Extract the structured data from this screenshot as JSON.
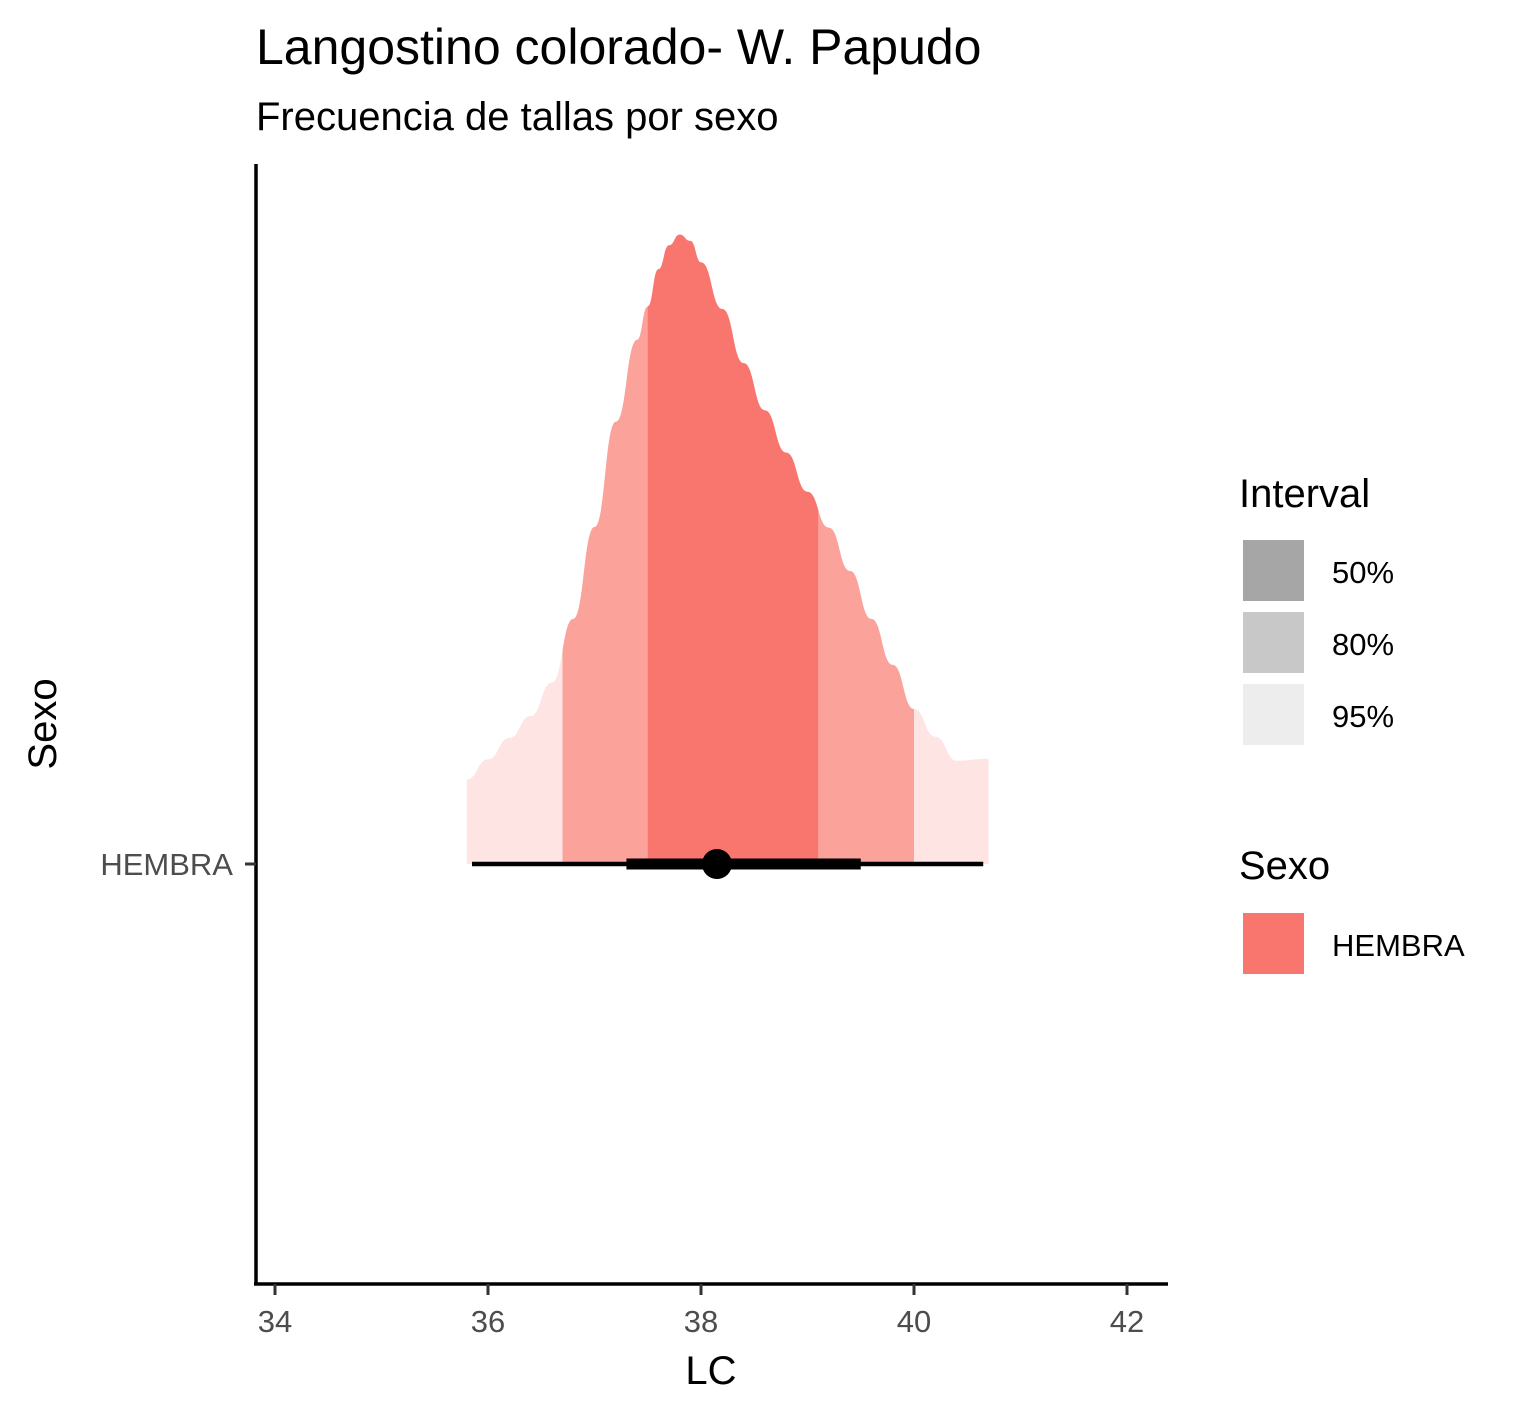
{
  "chart_data": {
    "type": "halfeye",
    "title": "Langostino colorado- W. Papudo",
    "subtitle": "Frecuencia de tallas por sexo",
    "xlabel": "LC",
    "ylabel": "Sexo",
    "xlim": [
      33.8,
      42.4
    ],
    "x_ticks": [
      34,
      36,
      38,
      40,
      42
    ],
    "y_categories": [
      "HEMBRA"
    ],
    "grid": false,
    "fill_color": "#F8766D",
    "density": {
      "x": [
        35.8,
        36.0,
        36.2,
        36.4,
        36.6,
        36.8,
        37.0,
        37.2,
        37.4,
        37.5,
        37.6,
        37.7,
        37.8,
        37.9,
        38.0,
        38.2,
        38.4,
        38.6,
        38.8,
        39.0,
        39.2,
        39.4,
        39.6,
        39.8,
        40.0,
        40.2,
        40.4,
        40.7
      ],
      "y": [
        0.134,
        0.166,
        0.2,
        0.235,
        0.288,
        0.389,
        0.535,
        0.702,
        0.832,
        0.885,
        0.944,
        0.982,
        0.999,
        0.989,
        0.955,
        0.881,
        0.795,
        0.72,
        0.653,
        0.591,
        0.534,
        0.465,
        0.389,
        0.316,
        0.246,
        0.202,
        0.164,
        0.167
      ]
    },
    "point_estimate": 38.15,
    "intervals": [
      {
        "level": "50%",
        "lower": 37.5,
        "upper": 39.1,
        "alpha": 1.0
      },
      {
        "level": "80%",
        "lower": 36.7,
        "upper": 40.0,
        "alpha": 0.6
      },
      {
        "level": "95%",
        "lower": 35.8,
        "upper": 40.7,
        "alpha": 0.2
      }
    ],
    "pointrange": {
      "thin": [
        35.85,
        40.65
      ],
      "thick": [
        37.3,
        39.5
      ]
    },
    "legend": {
      "position": "right",
      "interval": {
        "title": "Interval",
        "items": [
          {
            "label": "50%",
            "color": "#A6A6A6"
          },
          {
            "label": "80%",
            "color": "#C8C8C8"
          },
          {
            "label": "95%",
            "color": "#EDEDED"
          }
        ]
      },
      "sexo": {
        "title": "Sexo",
        "items": [
          {
            "label": "HEMBRA",
            "color": "#F8766D"
          }
        ]
      }
    }
  }
}
